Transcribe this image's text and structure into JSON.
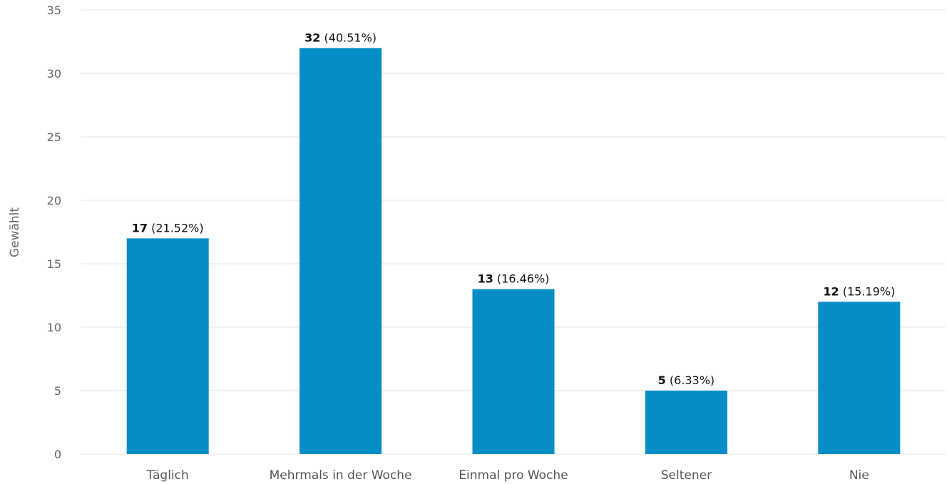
{
  "chart_data": {
    "type": "bar",
    "categories": [
      "Täglich",
      "Mehrmals in der Woche",
      "Einmal pro Woche",
      "Seltener",
      "Nie"
    ],
    "values": [
      17,
      32,
      13,
      5,
      12
    ],
    "value_labels": [
      "17",
      "32",
      "13",
      "5",
      "12"
    ],
    "percent_labels": [
      "(21.52%)",
      "(40.51%)",
      "(16.46%)",
      "(6.33%)",
      "(15.19%)"
    ],
    "xlabel": "",
    "ylabel": "Gewählt",
    "ylim": [
      0,
      35
    ],
    "yticks": [
      0,
      5,
      10,
      15,
      20,
      25,
      30,
      35
    ],
    "grid": true,
    "bar_color": "#058dc7"
  }
}
